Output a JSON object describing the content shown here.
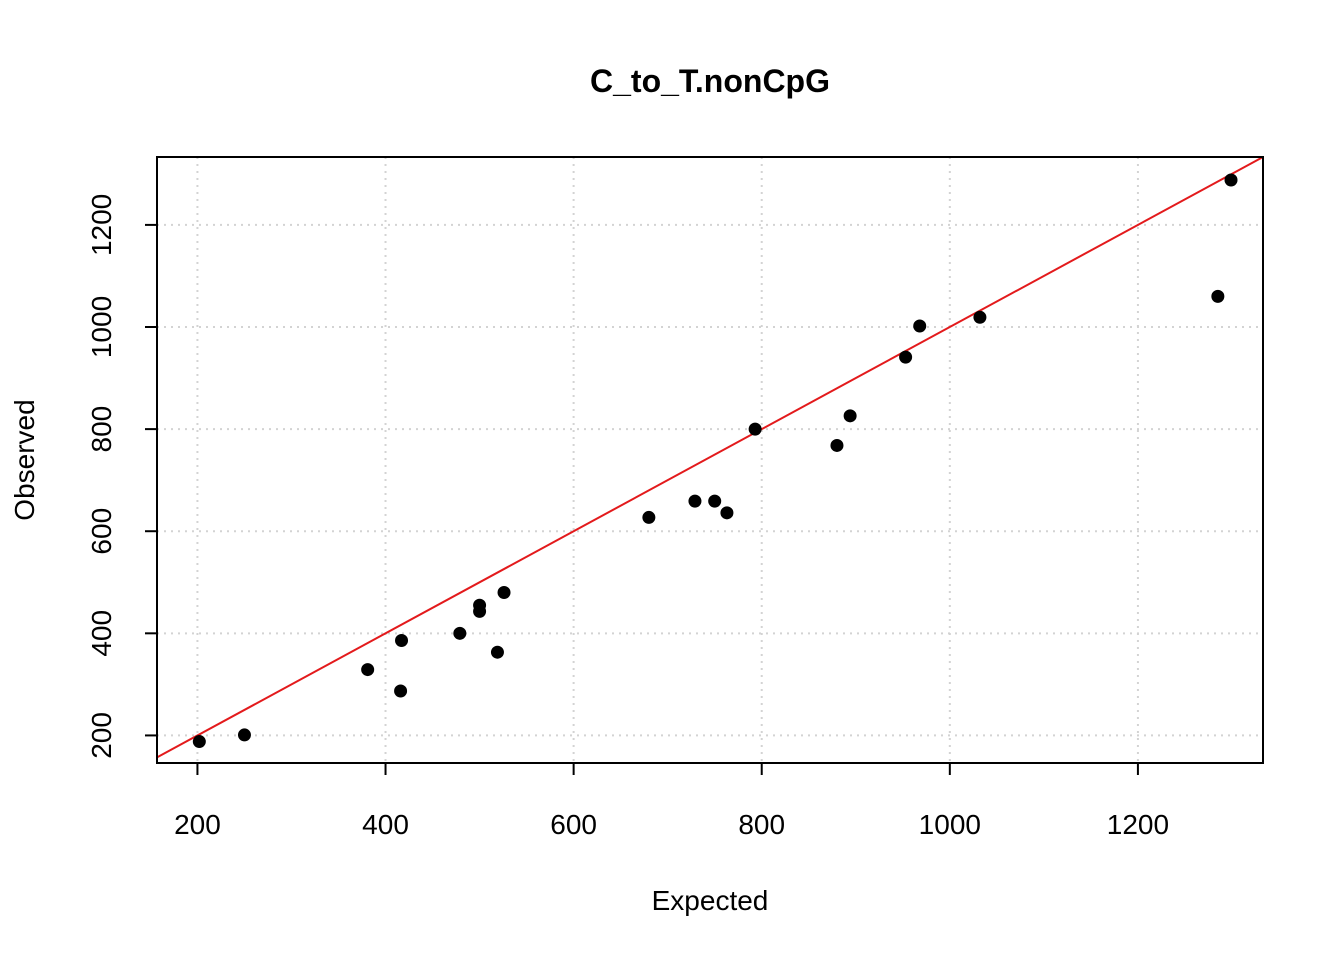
{
  "chart_data": {
    "type": "scatter",
    "title": "C_to_T.nonCpG",
    "xlabel": "Expected",
    "ylabel": "Observed",
    "xlim": [
      157,
      1333
    ],
    "ylim": [
      146,
      1333
    ],
    "x_ticks": [
      200,
      400,
      600,
      800,
      1000,
      1200
    ],
    "y_ticks": [
      200,
      400,
      600,
      800,
      1000,
      1200
    ],
    "grid": true,
    "point_color": "#000000",
    "points": [
      {
        "x": 202,
        "y": 188
      },
      {
        "x": 250,
        "y": 201
      },
      {
        "x": 381,
        "y": 329
      },
      {
        "x": 416,
        "y": 287
      },
      {
        "x": 417,
        "y": 386
      },
      {
        "x": 479,
        "y": 400
      },
      {
        "x": 500,
        "y": 443
      },
      {
        "x": 500,
        "y": 455
      },
      {
        "x": 519,
        "y": 363
      },
      {
        "x": 526,
        "y": 480
      },
      {
        "x": 680,
        "y": 627
      },
      {
        "x": 729,
        "y": 659
      },
      {
        "x": 750,
        "y": 659
      },
      {
        "x": 763,
        "y": 636
      },
      {
        "x": 793,
        "y": 800
      },
      {
        "x": 880,
        "y": 768
      },
      {
        "x": 894,
        "y": 826
      },
      {
        "x": 953,
        "y": 941
      },
      {
        "x": 968,
        "y": 1002
      },
      {
        "x": 1032,
        "y": 1019
      },
      {
        "x": 1285,
        "y": 1060
      },
      {
        "x": 1299,
        "y": 1288
      }
    ],
    "reference_line": {
      "type": "identity",
      "slope": 1,
      "intercept": 0,
      "color": "#e31a1c"
    }
  }
}
